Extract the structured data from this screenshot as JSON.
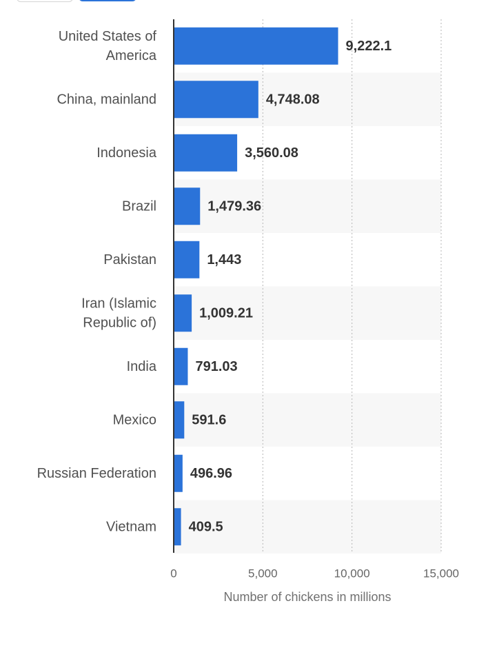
{
  "chart_data": {
    "type": "bar",
    "orientation": "horizontal",
    "categories": [
      "United States of America",
      "China, mainland",
      "Indonesia",
      "Brazil",
      "Pakistan",
      "Iran (Islamic Republic of)",
      "India",
      "Mexico",
      "Russian Federation",
      "Vietnam"
    ],
    "category_lines": [
      [
        "United States of",
        "America"
      ],
      [
        "China, mainland"
      ],
      [
        "Indonesia"
      ],
      [
        "Brazil"
      ],
      [
        "Pakistan"
      ],
      [
        "Iran (Islamic",
        "Republic of)"
      ],
      [
        "India"
      ],
      [
        "Mexico"
      ],
      [
        "Russian Federation"
      ],
      [
        "Vietnam"
      ]
    ],
    "values": [
      9222.1,
      4748.08,
      3560.08,
      1479.36,
      1443,
      1009.21,
      791.03,
      591.6,
      496.96,
      409.5
    ],
    "value_labels": [
      "9,222.1",
      "4,748.08",
      "3,560.08",
      "1,479.36",
      "1,443",
      "1,009.21",
      "791.03",
      "591.6",
      "496.96",
      "409.5"
    ],
    "xlabel": "Number of chickens in millions",
    "xlim": [
      0,
      15000
    ],
    "xticks": [
      0,
      5000,
      10000,
      15000
    ],
    "xtick_labels": [
      "0",
      "5,000",
      "10,000",
      "15,000"
    ],
    "grid": "vertical dotted",
    "bar_color": "#2b73d9",
    "band_color": "#f7f7f7"
  }
}
